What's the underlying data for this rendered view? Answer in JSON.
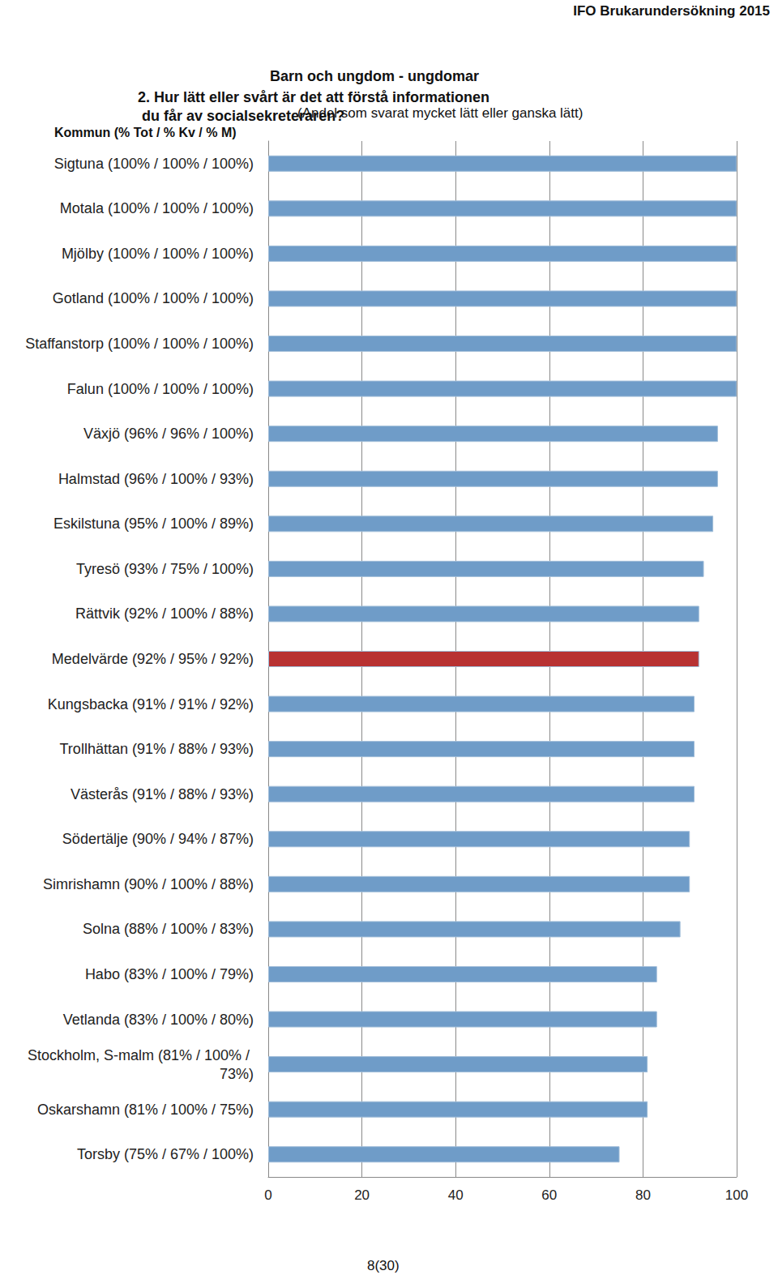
{
  "header": "IFO Brukarundersökning 2015",
  "page": "8(30)",
  "chart_data": {
    "type": "bar",
    "orientation": "horizontal",
    "title": "Barn och ungdom - ungdomar",
    "subtitle": "2. Hur lätt eller svårt är det att förstå informationen du får av socialsekreteraren?",
    "annotation": "(Andel som svarat mycket lätt eller ganska lätt)",
    "y_label": "Kommun (% Tot / % Kv / % M)",
    "categories": [
      "Sigtuna (100% / 100% / 100%)",
      "Motala (100% / 100% / 100%)",
      "Mjölby (100% / 100% / 100%)",
      "Gotland (100% / 100% / 100%)",
      "Staffanstorp (100% / 100% / 100%)",
      "Falun (100% / 100% / 100%)",
      "Växjö (96% / 96% / 100%)",
      "Halmstad (96% / 100% / 93%)",
      "Eskilstuna (95% / 100% / 89%)",
      "Tyresö (93% / 75% / 100%)",
      "Rättvik (92% / 100% / 88%)",
      "Medelvärde (92% / 95% / 92%)",
      "Kungsbacka (91% / 91% / 92%)",
      "Trollhättan (91% / 88% / 93%)",
      "Västerås (91% / 88% / 93%)",
      "Södertälje (90% / 94% / 87%)",
      "Simrishamn (90% / 100% / 88%)",
      "Solna (88% / 100% / 83%)",
      "Habo (83% / 100% / 79%)",
      "Vetlanda (83% / 100% / 80%)",
      "Stockholm, S-malm (81% / 100% / 73%)",
      "Oskarshamn (81% / 100% / 75%)",
      "Torsby (75% / 67% / 100%)"
    ],
    "values": [
      100,
      100,
      100,
      100,
      100,
      100,
      96,
      96,
      95,
      93,
      92,
      92,
      91,
      91,
      91,
      90,
      90,
      88,
      83,
      83,
      81,
      81,
      75
    ],
    "colors": [
      "#6f9cc8",
      "#6f9cc8",
      "#6f9cc8",
      "#6f9cc8",
      "#6f9cc8",
      "#6f9cc8",
      "#6f9cc8",
      "#6f9cc8",
      "#6f9cc8",
      "#6f9cc8",
      "#6f9cc8",
      "#b83232",
      "#6f9cc8",
      "#6f9cc8",
      "#6f9cc8",
      "#6f9cc8",
      "#6f9cc8",
      "#6f9cc8",
      "#6f9cc8",
      "#6f9cc8",
      "#6f9cc8",
      "#6f9cc8",
      "#6f9cc8"
    ],
    "xlim": [
      0,
      100
    ],
    "xticks": [
      0,
      20,
      40,
      60,
      80,
      100
    ],
    "grid": true
  }
}
